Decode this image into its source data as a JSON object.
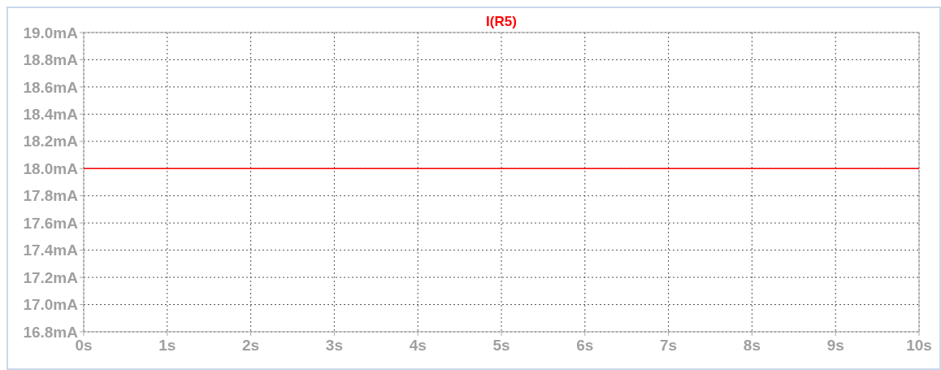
{
  "chart_data": {
    "type": "line",
    "title": "I(R5)",
    "x": [
      0,
      10
    ],
    "series": [
      {
        "color": "#ff0000",
        "values": [
          18.0,
          18.0
        ]
      }
    ],
    "xlim": [
      0,
      10
    ],
    "xticks": [
      {
        "value": 0,
        "label": "0s"
      },
      {
        "value": 1,
        "label": "1s"
      },
      {
        "value": 2,
        "label": "2s"
      },
      {
        "value": 3,
        "label": "3s"
      },
      {
        "value": 4,
        "label": "4s"
      },
      {
        "value": 5,
        "label": "5s"
      },
      {
        "value": 6,
        "label": "6s"
      },
      {
        "value": 7,
        "label": "7s"
      },
      {
        "value": 8,
        "label": "8s"
      },
      {
        "value": 9,
        "label": "9s"
      },
      {
        "value": 10,
        "label": "10s"
      }
    ],
    "ylim": [
      16.8,
      19.0
    ],
    "yticks": [
      {
        "value": 16.8,
        "label": "16.8mA"
      },
      {
        "value": 17.0,
        "label": "17.0mA"
      },
      {
        "value": 17.2,
        "label": "17.2mA"
      },
      {
        "value": 17.4,
        "label": "17.4mA"
      },
      {
        "value": 17.6,
        "label": "17.6mA"
      },
      {
        "value": 17.8,
        "label": "17.8mA"
      },
      {
        "value": 18.0,
        "label": "18.0mA"
      },
      {
        "value": 18.2,
        "label": "18.2mA"
      },
      {
        "value": 18.4,
        "label": "18.4mA"
      },
      {
        "value": 18.6,
        "label": "18.6mA"
      },
      {
        "value": 18.8,
        "label": "18.8mA"
      },
      {
        "value": 19.0,
        "label": "19.0mA"
      }
    ],
    "grid": true,
    "line_style": "solid"
  }
}
